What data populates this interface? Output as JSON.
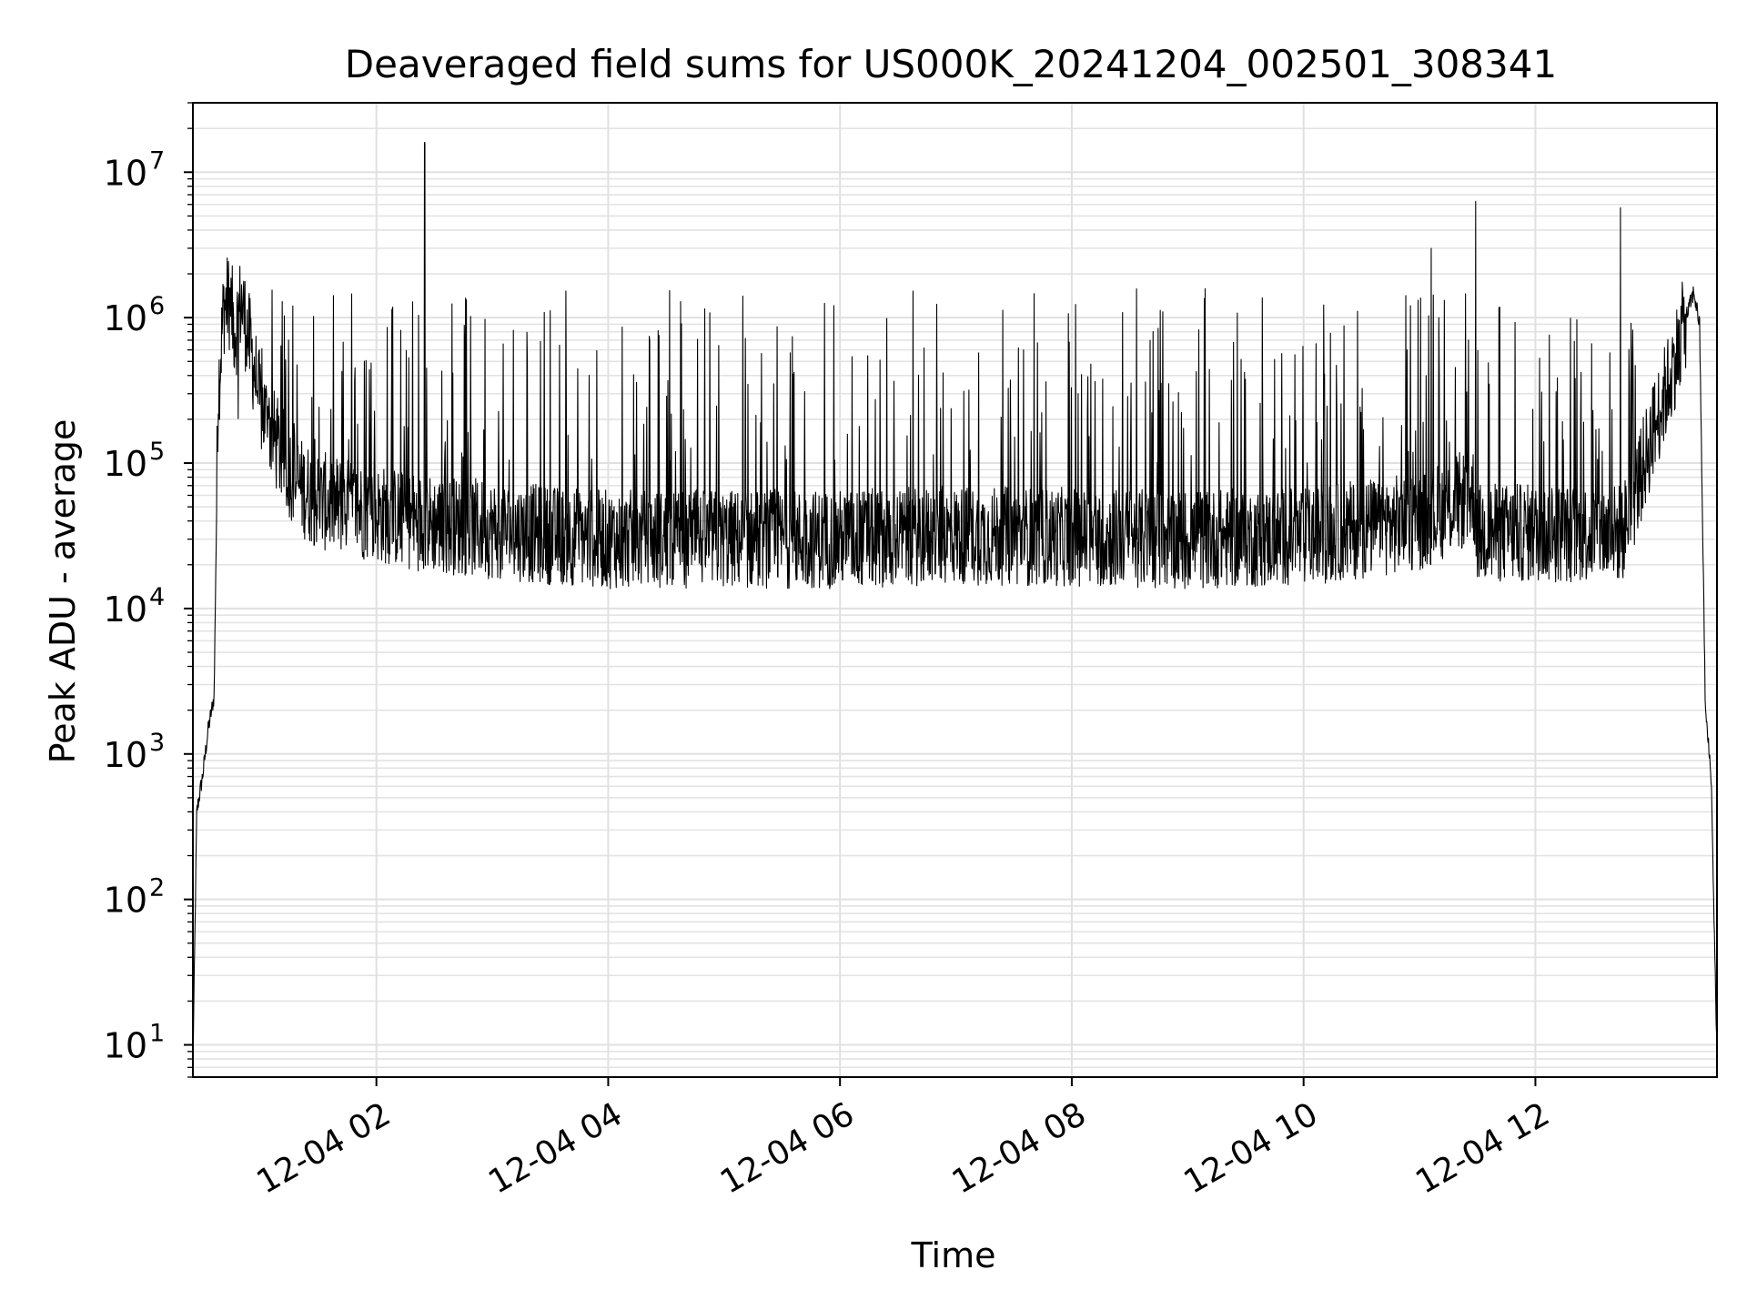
{
  "chart_data": {
    "type": "line",
    "title": "Deaveraged field sums for US000K_20241204_002501_308341",
    "xlabel": "Time",
    "ylabel": "Peak ADU - average",
    "yscale": "log",
    "ylim": [
      6,
      30000000
    ],
    "xlim": [
      "12-04 00:25",
      "12-04 13:34"
    ],
    "grid": true,
    "line_color": "#000000",
    "x_ticks": [
      {
        "label": "12-04 02",
        "time": "12-04 02:00"
      },
      {
        "label": "12-04 04",
        "time": "12-04 04:00"
      },
      {
        "label": "12-04 06",
        "time": "12-04 06:00"
      },
      {
        "label": "12-04 08",
        "time": "12-04 08:00"
      },
      {
        "label": "12-04 10",
        "time": "12-04 10:00"
      },
      {
        "label": "12-04 12",
        "time": "12-04 12:00"
      }
    ],
    "y_ticks": [
      {
        "base": "10",
        "exp": "1",
        "value": 10
      },
      {
        "base": "10",
        "exp": "2",
        "value": 100
      },
      {
        "base": "10",
        "exp": "3",
        "value": 1000
      },
      {
        "base": "10",
        "exp": "4",
        "value": 10000
      },
      {
        "base": "10",
        "exp": "5",
        "value": 100000
      },
      {
        "base": "10",
        "exp": "6",
        "value": 1000000
      },
      {
        "base": "10",
        "exp": "7",
        "value": 10000000
      }
    ],
    "series": [
      {
        "values_x": [
          "12-04 00:25",
          "12-04 00:27",
          "12-04 00:30",
          "12-04 00:33",
          "12-04 00:36",
          "12-04 00:38",
          "12-04 00:41",
          "12-04 00:44",
          "12-04 00:47",
          "12-04 00:50",
          "12-04 00:55",
          "12-04 01:00",
          "12-04 01:10",
          "12-04 01:20",
          "12-04 01:30",
          "12-04 01:45",
          "12-04 02:00",
          "12-04 02:20",
          "12-04 02:40",
          "12-04 03:00",
          "12-04 03:30",
          "12-04 04:00",
          "12-04 05:00",
          "12-04 06:00",
          "12-04 07:00",
          "12-04 08:00",
          "12-04 09:00",
          "12-04 10:00",
          "12-04 11:00",
          "12-04 11:28",
          "12-04 11:30",
          "12-04 12:00",
          "12-04 12:45",
          "12-04 12:50",
          "12-04 13:00",
          "12-04 13:10",
          "12-04 13:18",
          "12-04 13:22",
          "12-04 13:25",
          "12-04 13:28",
          "12-04 13:31",
          "12-04 13:34"
        ],
        "values_y": [
          7,
          400,
          700,
          1500,
          2500,
          300000,
          1200000,
          1300000,
          800000,
          1300000,
          600000,
          250000,
          120000,
          70000,
          55000,
          50000,
          45000,
          40000,
          37000,
          35000,
          32000,
          30000,
          30000,
          30000,
          32000,
          31000,
          30000,
          31000,
          40000,
          60000,
          33000,
          33000,
          33000,
          50000,
          150000,
          400000,
          1000000,
          1500000,
          900000,
          2000,
          700,
          8
        ]
      }
    ],
    "spikes": [
      {
        "time": "12-04 02:25",
        "value": 16000000
      },
      {
        "time": "12-04 11:06",
        "value": 3000000
      },
      {
        "time": "12-04 11:29",
        "value": 6300000
      },
      {
        "time": "12-04 12:44",
        "value": 5700000
      }
    ]
  }
}
